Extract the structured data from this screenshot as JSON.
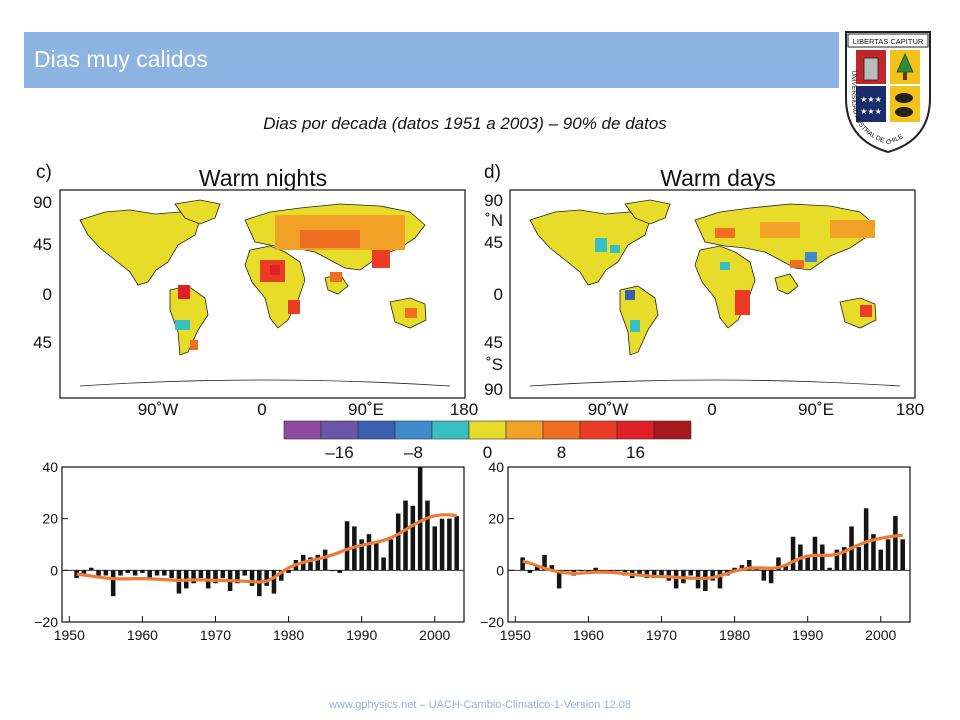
{
  "slide": {
    "title": "Dias muy calidos",
    "subtitle": "Dias por decada (datos 1951 a 2003) – 90%  de datos",
    "footer": "www.gphysics.net – UACH-Cambio-Climatico-1-Version 12.08"
  },
  "crest": {
    "motto": "LIBERTAS CAPITUR",
    "ring_text": "UNIVERSIDAD AUSTRAL DE CHILE"
  },
  "colors": {
    "accent": "#8db3e2",
    "trend": "#ee7b35",
    "land": "#e8dc2a",
    "scale": [
      "#8e4aa0",
      "#6a55a8",
      "#3a5fae",
      "#3f8ccc",
      "#37c0c4",
      "#e8dc2a",
      "#f0a126",
      "#ef6e22",
      "#ea3b24",
      "#e01f26",
      "#a6191c"
    ]
  },
  "maps": [
    {
      "panel_letter": "c)",
      "title": "Warm nights",
      "lat_labels": [
        "90",
        "45",
        "0",
        "45"
      ],
      "lon_labels": [
        "90˚W",
        "0",
        "90˚E",
        "180"
      ]
    },
    {
      "panel_letter": "d)",
      "title": "Warm days",
      "lat_labels": [
        "90",
        "˚N",
        "45",
        "0",
        "45",
        "˚S",
        "90"
      ],
      "lon_labels": [
        "90˚W",
        "0",
        "90˚E",
        "180"
      ]
    }
  ],
  "colorbar": {
    "tick_labels": [
      "–16",
      "–8",
      "0",
      "8",
      "16"
    ],
    "tick_values": [
      -16,
      -8,
      0,
      8,
      16
    ]
  },
  "chart_data": [
    {
      "type": "bar",
      "title": "Warm nights",
      "x": [
        1951,
        1952,
        1953,
        1954,
        1955,
        1956,
        1957,
        1958,
        1959,
        1960,
        1961,
        1962,
        1963,
        1964,
        1965,
        1966,
        1967,
        1968,
        1969,
        1970,
        1971,
        1972,
        1973,
        1974,
        1975,
        1976,
        1977,
        1978,
        1979,
        1980,
        1981,
        1982,
        1983,
        1984,
        1985,
        1986,
        1987,
        1988,
        1989,
        1990,
        1991,
        1992,
        1993,
        1994,
        1995,
        1996,
        1997,
        1998,
        1999,
        2000,
        2001,
        2002,
        2003
      ],
      "values": [
        -3,
        -2,
        1,
        -2,
        -2,
        -10,
        -2,
        -1,
        -2,
        -1,
        -3,
        -2,
        -2,
        -3,
        -9,
        -7,
        -5,
        -3,
        -7,
        -5,
        -3,
        -8,
        -5,
        -2,
        -6,
        -10,
        -6,
        -9,
        -4,
        -1,
        4,
        6,
        5,
        6,
        8,
        0,
        -1,
        19,
        17,
        12,
        14,
        11,
        5,
        12,
        22,
        27,
        25,
        40,
        27,
        17,
        20,
        20,
        21
      ],
      "trend": [
        -1.5,
        -1.8,
        -2.2,
        -2.6,
        -3,
        -3.2,
        -3.3,
        -3.3,
        -3.2,
        -3.2,
        -3.3,
        -3.4,
        -3.6,
        -3.8,
        -3.9,
        -3.8,
        -3.7,
        -3.7,
        -3.8,
        -3.9,
        -3.9,
        -4,
        -4.1,
        -4.2,
        -4.4,
        -4.5,
        -4.2,
        -2.8,
        -0.8,
        1,
        2.2,
        3.1,
        3.8,
        4.4,
        5.1,
        6,
        7,
        8.1,
        9,
        9.7,
        10.3,
        10.9,
        11.6,
        12.6,
        14,
        15.7,
        17.4,
        19,
        20.3,
        21.1,
        21.5,
        21.5,
        21.2
      ],
      "xticks": [
        1950,
        1960,
        1970,
        1980,
        1990,
        2000
      ],
      "yticks": [
        -20,
        0,
        20,
        40
      ],
      "xlim": [
        1949,
        2004
      ],
      "ylim": [
        -20,
        40
      ]
    },
    {
      "type": "bar",
      "title": "Warm days",
      "x": [
        1951,
        1952,
        1953,
        1954,
        1955,
        1956,
        1957,
        1958,
        1959,
        1960,
        1961,
        1962,
        1963,
        1964,
        1965,
        1966,
        1967,
        1968,
        1969,
        1970,
        1971,
        1972,
        1973,
        1974,
        1975,
        1976,
        1977,
        1978,
        1979,
        1980,
        1981,
        1982,
        1983,
        1984,
        1985,
        1986,
        1987,
        1988,
        1989,
        1990,
        1991,
        1992,
        1993,
        1994,
        1995,
        1996,
        1997,
        1998,
        1999,
        2000,
        2001,
        2002,
        2003
      ],
      "values": [
        5,
        -1,
        2,
        6,
        2,
        -7,
        0,
        -2,
        0,
        -1,
        1,
        -1,
        -1,
        0,
        -2,
        -3,
        -2,
        -3,
        -3,
        -2,
        -4,
        -7,
        -5,
        -2,
        -7,
        -8,
        -4,
        -7,
        -2,
        1,
        2,
        4,
        1,
        -4,
        -5,
        5,
        2,
        13,
        10,
        6,
        13,
        10,
        1,
        8,
        9,
        17,
        9,
        24,
        14,
        8,
        12,
        21,
        12
      ],
      "trend": [
        3.5,
        2.8,
        1.8,
        0.8,
        0,
        -0.6,
        -1,
        -1.2,
        -1.1,
        -0.9,
        -0.7,
        -0.7,
        -0.8,
        -1,
        -1.3,
        -1.6,
        -1.9,
        -2.1,
        -2.3,
        -2.4,
        -2.5,
        -2.7,
        -2.9,
        -3,
        -3.1,
        -3.1,
        -2.8,
        -2.1,
        -1.2,
        -0.3,
        0.4,
        0.9,
        1,
        0.9,
        0.8,
        1.1,
        2,
        3.4,
        4.7,
        5.5,
        5.8,
        5.8,
        5.8,
        6.2,
        7.2,
        8.6,
        9.9,
        11,
        11.8,
        12.4,
        12.9,
        13.3,
        13.6
      ],
      "xticks": [
        1950,
        1960,
        1970,
        1980,
        1990,
        2000
      ],
      "yticks": [
        -20,
        0,
        20,
        40
      ],
      "xlim": [
        1949,
        2004
      ],
      "ylim": [
        -20,
        40
      ]
    }
  ]
}
